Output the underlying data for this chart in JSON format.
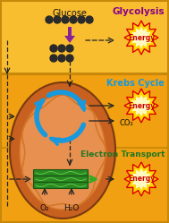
{
  "bg_color": "#F5A820",
  "top_bg": "#F9BE30",
  "mid_bg": "#F0A010",
  "border_color": "#C8880A",
  "mito_outer_color": "#C86020",
  "mito_inner_color": "#E89050",
  "mito_cristae_color": "#D47828",
  "glycolysis_label": "Glycolysis",
  "krebs_label": "Krebs Cycle",
  "electron_label": "Electron Transport",
  "energy_label": "Energy",
  "glucose_label": "Glucose",
  "co2_label": "CO₂",
  "o2_label": "O₂",
  "h2o_label": "H₂O",
  "glycolysis_color": "#880088",
  "krebs_color": "#1899DD",
  "electron_color": "#227722",
  "energy_text_color": "#CC0000",
  "ball_color": "#2A2A2A",
  "arrow_color": "#222222",
  "purple_arrow_color": "#882299",
  "starburst_spike": "#DD0000",
  "starburst_fill": "#FFD700",
  "starburst_center": "#FFF8C0",
  "green_struct_color": "#2A8822",
  "green_struct_edge": "#1A5510",
  "green_arrow_color": "#33AA22"
}
